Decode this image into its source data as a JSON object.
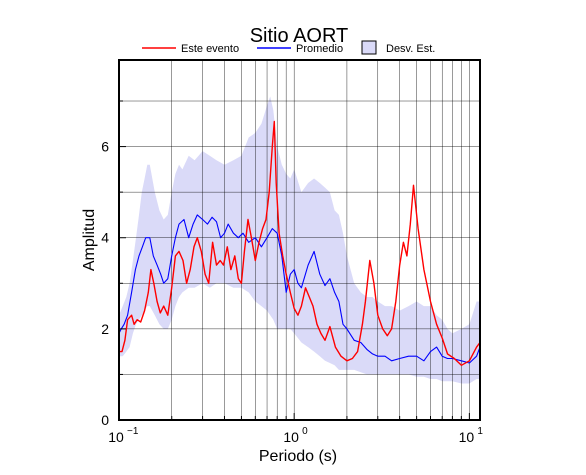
{
  "chart_data": {
    "type": "line",
    "title": "Sitio AORT",
    "xlabel": "Periodo (s)",
    "ylabel": "Amplitud",
    "xscale": "log",
    "xlim": [
      0.1,
      11.5
    ],
    "ylim": [
      0,
      7.9
    ],
    "grid": true,
    "legend_position": "top",
    "x_ticks": [
      {
        "value": 0.1,
        "base": "10",
        "exp": "−1"
      },
      {
        "value": 1,
        "base": "10",
        "exp": "0"
      },
      {
        "value": 10,
        "base": "10",
        "exp": "1"
      }
    ],
    "y_ticks": [
      0,
      2,
      4,
      6
    ],
    "legend": [
      {
        "label": "Este evento",
        "color": "#ff0000",
        "kind": "line"
      },
      {
        "label": "Promedio",
        "color": "#0000ff",
        "kind": "line"
      },
      {
        "label": "Desv. Est.",
        "color": "#dadaf8",
        "kind": "box"
      }
    ],
    "series": [
      {
        "name": "Este evento",
        "color": "#ff0000",
        "x": [
          0.1,
          0.104,
          0.108,
          0.112,
          0.118,
          0.122,
          0.127,
          0.133,
          0.14,
          0.147,
          0.152,
          0.158,
          0.165,
          0.172,
          0.18,
          0.19,
          0.2,
          0.21,
          0.22,
          0.232,
          0.243,
          0.255,
          0.268,
          0.28,
          0.295,
          0.31,
          0.325,
          0.342,
          0.36,
          0.378,
          0.395,
          0.415,
          0.435,
          0.458,
          0.48,
          0.5,
          0.52,
          0.545,
          0.57,
          0.6,
          0.63,
          0.66,
          0.69,
          0.72,
          0.75,
          0.77,
          0.79,
          0.82,
          0.86,
          0.9,
          0.95,
          1.0,
          1.05,
          1.1,
          1.16,
          1.22,
          1.28,
          1.35,
          1.42,
          1.5,
          1.6,
          1.72,
          1.85,
          2.0,
          2.15,
          2.3,
          2.45,
          2.55,
          2.7,
          2.85,
          3.0,
          3.2,
          3.4,
          3.6,
          3.8,
          4.0,
          4.2,
          4.4,
          4.6,
          4.8,
          5.1,
          5.5,
          6.0,
          6.5,
          7.0,
          7.5,
          8.2,
          9.0,
          10.0,
          11.0,
          11.5
        ],
        "y": [
          1.5,
          1.5,
          1.75,
          2.2,
          2.3,
          2.1,
          2.2,
          2.15,
          2.4,
          2.8,
          3.3,
          3.0,
          2.6,
          2.35,
          2.5,
          2.3,
          2.9,
          3.6,
          3.7,
          3.5,
          3.0,
          3.3,
          3.8,
          4.0,
          3.7,
          3.2,
          3.0,
          3.9,
          3.4,
          3.5,
          3.4,
          3.8,
          3.3,
          3.6,
          3.1,
          3.0,
          3.7,
          4.4,
          4.0,
          3.5,
          3.9,
          4.2,
          4.4,
          5.0,
          6.0,
          6.55,
          5.2,
          4.1,
          3.6,
          3.2,
          2.8,
          2.45,
          2.3,
          2.5,
          2.9,
          2.7,
          2.5,
          2.1,
          1.9,
          1.75,
          2.05,
          1.6,
          1.4,
          1.3,
          1.35,
          1.5,
          2.1,
          2.6,
          3.5,
          3.0,
          2.3,
          2.0,
          1.85,
          2.0,
          2.6,
          3.4,
          3.9,
          3.6,
          4.3,
          5.15,
          4.2,
          3.3,
          2.6,
          2.1,
          1.8,
          1.45,
          1.35,
          1.2,
          1.3,
          1.6,
          1.7
        ]
      },
      {
        "name": "Promedio",
        "color": "#0000ff",
        "x": [
          0.1,
          0.103,
          0.107,
          0.112,
          0.118,
          0.124,
          0.13,
          0.136,
          0.142,
          0.15,
          0.157,
          0.165,
          0.173,
          0.18,
          0.19,
          0.2,
          0.21,
          0.22,
          0.235,
          0.25,
          0.265,
          0.28,
          0.3,
          0.32,
          0.34,
          0.36,
          0.38,
          0.4,
          0.42,
          0.45,
          0.48,
          0.51,
          0.55,
          0.6,
          0.65,
          0.7,
          0.75,
          0.8,
          0.85,
          0.9,
          0.95,
          1.0,
          1.05,
          1.1,
          1.2,
          1.3,
          1.4,
          1.5,
          1.6,
          1.7,
          1.8,
          1.9,
          2.0,
          2.2,
          2.4,
          2.6,
          2.8,
          3.0,
          3.3,
          3.6,
          4.0,
          4.5,
          5.0,
          5.5,
          6.0,
          6.5,
          7.0,
          7.5,
          8.0,
          9.0,
          10.0,
          11.0,
          11.5
        ],
        "y": [
          1.9,
          2.0,
          2.1,
          2.3,
          2.8,
          3.3,
          3.6,
          3.8,
          4.0,
          4.0,
          3.6,
          3.4,
          3.2,
          3.0,
          3.1,
          3.6,
          4.0,
          4.3,
          4.4,
          4.0,
          4.3,
          4.5,
          4.4,
          4.3,
          4.45,
          4.35,
          4.0,
          4.1,
          4.3,
          4.1,
          4.0,
          4.1,
          3.9,
          4.0,
          3.8,
          4.0,
          4.2,
          4.1,
          3.6,
          2.8,
          3.2,
          3.3,
          3.0,
          2.9,
          3.4,
          3.7,
          3.2,
          2.95,
          3.1,
          2.8,
          2.6,
          2.1,
          2.0,
          1.75,
          1.7,
          1.55,
          1.45,
          1.4,
          1.4,
          1.3,
          1.35,
          1.4,
          1.4,
          1.3,
          1.5,
          1.6,
          1.4,
          1.35,
          1.35,
          1.3,
          1.25,
          1.4,
          1.6
        ]
      }
    ],
    "std_band": {
      "name": "Desv. Est.",
      "color": "#dadaf8",
      "x": [
        0.1,
        0.105,
        0.11,
        0.115,
        0.12,
        0.125,
        0.13,
        0.135,
        0.14,
        0.145,
        0.15,
        0.16,
        0.17,
        0.18,
        0.19,
        0.2,
        0.21,
        0.22,
        0.23,
        0.25,
        0.27,
        0.3,
        0.33,
        0.36,
        0.4,
        0.45,
        0.5,
        0.55,
        0.6,
        0.65,
        0.7,
        0.73,
        0.76,
        0.8,
        0.85,
        0.9,
        0.95,
        1.0,
        1.1,
        1.2,
        1.3,
        1.4,
        1.5,
        1.6,
        1.7,
        1.8,
        1.9,
        2.0,
        2.2,
        2.4,
        2.6,
        2.8,
        3.0,
        3.3,
        3.6,
        4.0,
        4.5,
        5.0,
        5.5,
        6.0,
        6.5,
        7.0,
        7.5,
        8.0,
        9.0,
        10.0,
        11.0,
        11.5
      ],
      "upper": [
        2.3,
        2.5,
        2.7,
        3.0,
        3.5,
        4.0,
        4.5,
        5.0,
        5.3,
        5.6,
        5.6,
        5.0,
        4.6,
        4.4,
        4.5,
        5.0,
        5.4,
        5.6,
        5.5,
        5.8,
        5.7,
        5.9,
        5.8,
        5.7,
        5.6,
        5.7,
        5.8,
        6.2,
        6.3,
        6.5,
        6.9,
        7.1,
        6.8,
        6.0,
        5.6,
        5.4,
        5.3,
        5.5,
        5.0,
        5.2,
        5.3,
        5.2,
        5.1,
        5.0,
        4.6,
        4.5,
        4.1,
        3.6,
        3.0,
        2.8,
        2.7,
        2.7,
        2.6,
        2.5,
        2.5,
        2.4,
        2.5,
        2.6,
        2.5,
        2.5,
        2.3,
        2.2,
        2.0,
        1.9,
        2.0,
        2.1,
        2.6,
        2.6
      ],
      "lower": [
        1.4,
        1.4,
        1.5,
        1.6,
        1.9,
        2.1,
        2.2,
        2.3,
        2.4,
        2.5,
        2.5,
        2.3,
        2.1,
        2.0,
        2.0,
        2.2,
        2.5,
        2.7,
        2.8,
        2.9,
        2.9,
        3.0,
        2.9,
        3.0,
        3.0,
        2.9,
        2.9,
        2.8,
        2.6,
        2.5,
        2.4,
        2.3,
        2.2,
        2.0,
        2.0,
        2.0,
        2.0,
        1.9,
        1.7,
        1.6,
        1.5,
        1.4,
        1.3,
        1.25,
        1.2,
        1.1,
        1.1,
        1.1,
        1.1,
        1.05,
        1.0,
        1.0,
        1.0,
        1.0,
        1.0,
        1.0,
        1.0,
        0.95,
        0.95,
        0.9,
        0.9,
        0.85,
        0.85,
        0.85,
        0.8,
        0.8,
        0.9,
        0.9
      ]
    }
  }
}
